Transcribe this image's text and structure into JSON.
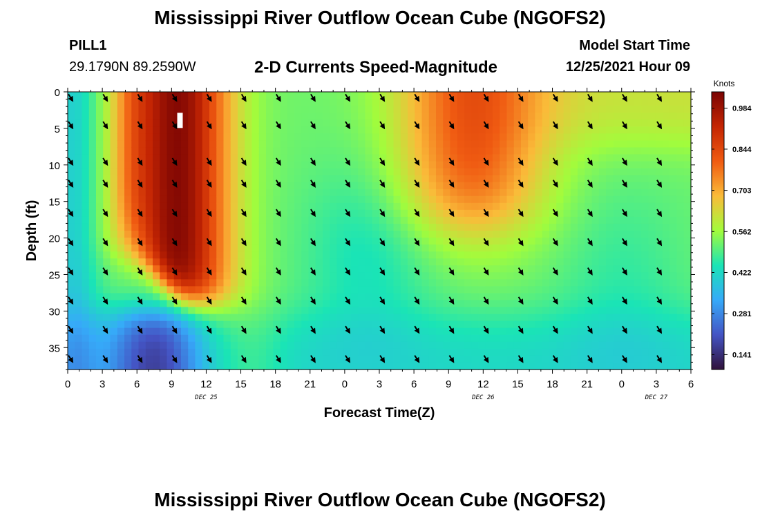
{
  "header": {
    "title": "Mississippi River Outflow Ocean Cube (NGOFS2)",
    "station": "PILL1",
    "coordinates": "29.1790N  89.2590W",
    "subtitle": "2-D Currents Speed-Magnitude",
    "model_start_label": "Model Start Time",
    "model_start_value": "12/25/2021 Hour 09"
  },
  "footer": {
    "title": "Mississippi River Outflow Ocean Cube (NGOFS2)"
  },
  "chart_data": {
    "type": "heatmap",
    "xlabel": "Forecast Time(Z)",
    "ylabel": "Depth (ft)",
    "x_tick_labels": [
      "0",
      "3",
      "6",
      "9",
      "12",
      "15",
      "18",
      "21",
      "0",
      "3",
      "6",
      "9",
      "12",
      "15",
      "18",
      "21",
      "0",
      "3",
      "6"
    ],
    "day_labels": [
      {
        "label": "DEC 25",
        "hour": 12
      },
      {
        "label": "DEC 26",
        "hour": 36
      },
      {
        "label": "DEC 27",
        "hour": 51
      }
    ],
    "x_range_hours": [
      0,
      54
    ],
    "y_ticks": [
      0,
      5,
      10,
      15,
      20,
      25,
      30,
      35
    ],
    "y_range_ft": [
      0,
      38
    ],
    "y_inverted": true,
    "colorbar": {
      "label": "Knots",
      "ticks": [
        "0.984",
        "0.844",
        "0.703",
        "0.562",
        "0.422",
        "0.281",
        "0.141"
      ],
      "range": [
        0.09,
        1.04
      ],
      "colors": [
        "#30123b",
        "#4454c4",
        "#36aaf9",
        "#1ae4b6",
        "#a2fc3c",
        "#fabb39",
        "#f05b12",
        "#c42503",
        "#7a0403"
      ]
    },
    "current_marker": {
      "hour": 9.7,
      "depth_ft": 4.0
    },
    "arrow_hours": [
      0,
      3,
      6,
      9,
      12,
      15,
      18,
      21,
      24,
      27,
      30,
      33,
      36,
      39,
      42,
      45,
      48,
      51
    ],
    "arrow_depths_ft": [
      0,
      4.5,
      9.5,
      12.5,
      16.5,
      20.5,
      24.5,
      28.5,
      32.5,
      36.5
    ],
    "speed_model": {
      "description": "approximate current speed (knots) by hour and depth",
      "background": 0.52
    }
  }
}
